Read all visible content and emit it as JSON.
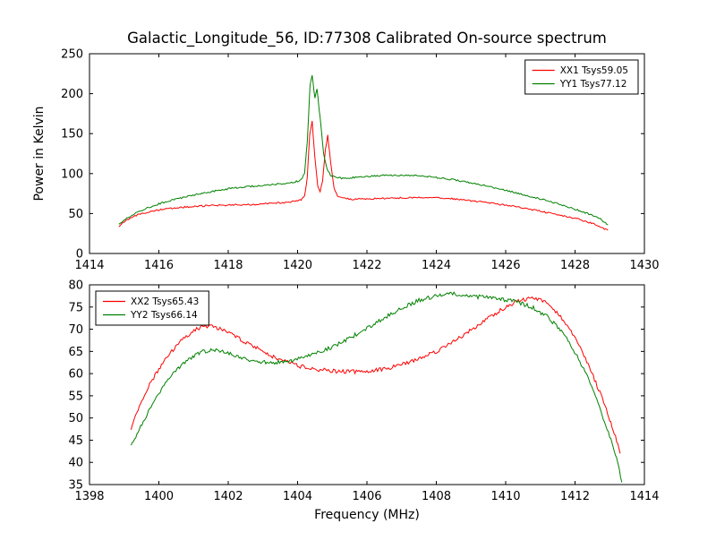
{
  "figure": {
    "title": "Galactic_Longitude_56, ID:77308 Calibrated On-source spectrum",
    "background": "#ffffff",
    "line_colors": {
      "xx": "#ff0000",
      "yy": "#008000"
    }
  },
  "chart_data": [
    {
      "type": "line",
      "title": "Galactic_Longitude_56, ID:77308 Calibrated On-source spectrum",
      "xlabel": "",
      "ylabel": "Power in Kelvin",
      "xlim": [
        1414,
        1430
      ],
      "ylim": [
        0,
        250
      ],
      "xticks": [
        1414,
        1416,
        1418,
        1420,
        1422,
        1424,
        1426,
        1428,
        1430
      ],
      "yticks": [
        0,
        50,
        100,
        150,
        200,
        250
      ],
      "grid": false,
      "legend": {
        "position": "upper-right"
      },
      "series": [
        {
          "name": "XX1 Tsys59.05",
          "color": "#ff0000",
          "noise": 1.0,
          "points": [
            [
              1414.85,
              34
            ],
            [
              1415.0,
              40
            ],
            [
              1415.2,
              45
            ],
            [
              1415.5,
              50
            ],
            [
              1415.8,
              53
            ],
            [
              1416.2,
              55.5
            ],
            [
              1416.6,
              57.5
            ],
            [
              1417.0,
              59
            ],
            [
              1417.5,
              60
            ],
            [
              1418.0,
              60.5
            ],
            [
              1418.5,
              61
            ],
            [
              1419.0,
              62
            ],
            [
              1419.5,
              63.5
            ],
            [
              1419.9,
              65
            ],
            [
              1420.1,
              67
            ],
            [
              1420.2,
              72
            ],
            [
              1420.28,
              95
            ],
            [
              1420.35,
              150
            ],
            [
              1420.42,
              165
            ],
            [
              1420.5,
              120
            ],
            [
              1420.58,
              85
            ],
            [
              1420.65,
              78
            ],
            [
              1420.72,
              90
            ],
            [
              1420.8,
              130
            ],
            [
              1420.87,
              148
            ],
            [
              1420.95,
              115
            ],
            [
              1421.05,
              82
            ],
            [
              1421.15,
              72
            ],
            [
              1421.3,
              69
            ],
            [
              1421.6,
              68
            ],
            [
              1422.0,
              68.5
            ],
            [
              1422.5,
              69
            ],
            [
              1423.0,
              69.5
            ],
            [
              1423.5,
              70
            ],
            [
              1424.0,
              69.5
            ],
            [
              1424.3,
              69
            ],
            [
              1424.7,
              67.5
            ],
            [
              1425.0,
              66
            ],
            [
              1425.5,
              63.5
            ],
            [
              1426.0,
              60.5
            ],
            [
              1426.5,
              57
            ],
            [
              1427.0,
              53
            ],
            [
              1427.5,
              48.5
            ],
            [
              1428.0,
              44
            ],
            [
              1428.4,
              39
            ],
            [
              1428.7,
              34
            ],
            [
              1428.95,
              29
            ]
          ]
        },
        {
          "name": "YY1 Tsys77.12",
          "color": "#008000",
          "noise": 1.0,
          "points": [
            [
              1414.85,
              36
            ],
            [
              1415.0,
              42
            ],
            [
              1415.3,
              50
            ],
            [
              1415.6,
              56
            ],
            [
              1416.0,
              62
            ],
            [
              1416.4,
              67
            ],
            [
              1416.8,
              71
            ],
            [
              1417.2,
              75
            ],
            [
              1417.6,
              78
            ],
            [
              1418.0,
              81
            ],
            [
              1418.4,
              83
            ],
            [
              1418.8,
              84.5
            ],
            [
              1419.2,
              86
            ],
            [
              1419.6,
              87.5
            ],
            [
              1419.9,
              89
            ],
            [
              1420.1,
              92
            ],
            [
              1420.2,
              100
            ],
            [
              1420.28,
              140
            ],
            [
              1420.36,
              210
            ],
            [
              1420.42,
              223
            ],
            [
              1420.5,
              195
            ],
            [
              1420.56,
              205
            ],
            [
              1420.65,
              170
            ],
            [
              1420.75,
              125
            ],
            [
              1420.85,
              105
            ],
            [
              1420.95,
              98
            ],
            [
              1421.1,
              95
            ],
            [
              1421.3,
              94
            ],
            [
              1421.6,
              95
            ],
            [
              1422.0,
              96.5
            ],
            [
              1422.4,
              97.5
            ],
            [
              1422.8,
              98
            ],
            [
              1423.2,
              98
            ],
            [
              1423.6,
              96.5
            ],
            [
              1424.0,
              95
            ],
            [
              1424.4,
              93
            ],
            [
              1424.8,
              90
            ],
            [
              1425.2,
              86.5
            ],
            [
              1425.6,
              83
            ],
            [
              1426.0,
              79
            ],
            [
              1426.4,
              75
            ],
            [
              1426.8,
              70.5
            ],
            [
              1427.2,
              66
            ],
            [
              1427.6,
              61
            ],
            [
              1428.0,
              55.5
            ],
            [
              1428.4,
              49.5
            ],
            [
              1428.7,
              44
            ],
            [
              1428.95,
              36
            ]
          ]
        }
      ]
    },
    {
      "type": "line",
      "title": "",
      "xlabel": "Frequency (MHz)",
      "ylabel": "",
      "xlim": [
        1398,
        1414
      ],
      "ylim": [
        35,
        80
      ],
      "xticks": [
        1398,
        1400,
        1402,
        1404,
        1406,
        1408,
        1410,
        1412,
        1414
      ],
      "yticks": [
        35,
        40,
        45,
        50,
        55,
        60,
        65,
        70,
        75,
        80
      ],
      "grid": false,
      "legend": {
        "position": "upper-left"
      },
      "series": [
        {
          "name": "XX2 Tsys65.43",
          "color": "#ff0000",
          "noise": 0.45,
          "points": [
            [
              1399.2,
              47.5
            ],
            [
              1399.4,
              52
            ],
            [
              1399.7,
              57
            ],
            [
              1400.0,
              61
            ],
            [
              1400.3,
              64.5
            ],
            [
              1400.6,
              67
            ],
            [
              1400.9,
              69
            ],
            [
              1401.2,
              70.5
            ],
            [
              1401.5,
              70.8
            ],
            [
              1401.8,
              70
            ],
            [
              1402.1,
              69
            ],
            [
              1402.4,
              67.5
            ],
            [
              1402.8,
              66
            ],
            [
              1403.2,
              64.2
            ],
            [
              1403.6,
              62.8
            ],
            [
              1404.0,
              61.8
            ],
            [
              1404.5,
              61.0
            ],
            [
              1405.0,
              60.6
            ],
            [
              1405.5,
              60.4
            ],
            [
              1406.0,
              60.5
            ],
            [
              1406.5,
              61.0
            ],
            [
              1407.0,
              62.0
            ],
            [
              1407.5,
              63.3
            ],
            [
              1408.0,
              65.0
            ],
            [
              1408.5,
              67.2
            ],
            [
              1409.0,
              69.8
            ],
            [
              1409.5,
              72.5
            ],
            [
              1410.0,
              75.0
            ],
            [
              1410.4,
              76.5
            ],
            [
              1410.8,
              77.0
            ],
            [
              1411.1,
              76.3
            ],
            [
              1411.4,
              74.5
            ],
            [
              1411.7,
              71.8
            ],
            [
              1412.0,
              68
            ],
            [
              1412.3,
              63.5
            ],
            [
              1412.6,
              58
            ],
            [
              1412.9,
              52
            ],
            [
              1413.1,
              47.5
            ],
            [
              1413.3,
              42
            ]
          ]
        },
        {
          "name": "YY2 Tsys66.14",
          "color": "#008000",
          "noise": 0.45,
          "points": [
            [
              1399.2,
              43.5
            ],
            [
              1399.4,
              47
            ],
            [
              1399.7,
              51.5
            ],
            [
              1400.0,
              55.5
            ],
            [
              1400.3,
              59
            ],
            [
              1400.6,
              61.5
            ],
            [
              1400.9,
              63.5
            ],
            [
              1401.2,
              64.8
            ],
            [
              1401.5,
              65.3
            ],
            [
              1401.8,
              65.0
            ],
            [
              1402.1,
              64.3
            ],
            [
              1402.5,
              63.3
            ],
            [
              1402.9,
              62.7
            ],
            [
              1403.3,
              62.5
            ],
            [
              1403.7,
              62.8
            ],
            [
              1404.1,
              63.5
            ],
            [
              1404.5,
              64.5
            ],
            [
              1405.0,
              66.0
            ],
            [
              1405.5,
              68.0
            ],
            [
              1406.0,
              70.2
            ],
            [
              1406.5,
              72.5
            ],
            [
              1407.0,
              74.8
            ],
            [
              1407.5,
              76.5
            ],
            [
              1408.0,
              77.5
            ],
            [
              1408.4,
              78.0
            ],
            [
              1408.8,
              77.8
            ],
            [
              1409.2,
              77.3
            ],
            [
              1409.6,
              77.0
            ],
            [
              1410.0,
              76.6
            ],
            [
              1410.4,
              76.0
            ],
            [
              1410.8,
              74.8
            ],
            [
              1411.2,
              72.8
            ],
            [
              1411.5,
              70.5
            ],
            [
              1411.8,
              67.5
            ],
            [
              1412.1,
              63.5
            ],
            [
              1412.4,
              58.5
            ],
            [
              1412.7,
              52.5
            ],
            [
              1413.0,
              46
            ],
            [
              1413.2,
              41
            ],
            [
              1413.35,
              35.5
            ]
          ]
        }
      ]
    }
  ]
}
